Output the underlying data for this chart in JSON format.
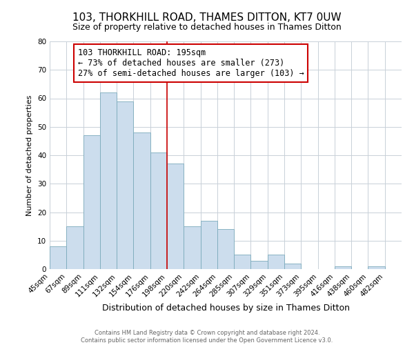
{
  "title": "103, THORKHILL ROAD, THAMES DITTON, KT7 0UW",
  "subtitle": "Size of property relative to detached houses in Thames Ditton",
  "xlabel": "Distribution of detached houses by size in Thames Ditton",
  "ylabel": "Number of detached properties",
  "footer_line1": "Contains HM Land Registry data © Crown copyright and database right 2024.",
  "footer_line2": "Contains public sector information licensed under the Open Government Licence v3.0.",
  "bin_labels": [
    "45sqm",
    "67sqm",
    "89sqm",
    "111sqm",
    "132sqm",
    "154sqm",
    "176sqm",
    "198sqm",
    "220sqm",
    "242sqm",
    "264sqm",
    "285sqm",
    "307sqm",
    "329sqm",
    "351sqm",
    "373sqm",
    "395sqm",
    "416sqm",
    "438sqm",
    "460sqm",
    "482sqm"
  ],
  "bar_values": [
    8,
    15,
    47,
    62,
    59,
    48,
    41,
    37,
    15,
    17,
    14,
    5,
    3,
    5,
    2,
    0,
    0,
    1,
    0,
    1,
    0
  ],
  "bar_color": "#ccdded",
  "bar_edge_color": "#7aaabb",
  "property_line_label": "103 THORKHILL ROAD: 195sqm",
  "annotation_line2": "← 73% of detached houses are smaller (273)",
  "annotation_line3": "27% of semi-detached houses are larger (103) →",
  "annotation_box_color": "#ffffff",
  "annotation_box_edge": "#cc0000",
  "line_color": "#cc0000",
  "ylim": [
    0,
    80
  ],
  "yticks": [
    0,
    10,
    20,
    30,
    40,
    50,
    60,
    70,
    80
  ],
  "background_color": "#ffffff",
  "grid_color": "#c8d0d8",
  "title_fontsize": 11,
  "subtitle_fontsize": 9,
  "ylabel_fontsize": 8,
  "xlabel_fontsize": 9,
  "tick_fontsize": 7.5,
  "annotation_fontsize": 8.5,
  "footer_fontsize": 6
}
